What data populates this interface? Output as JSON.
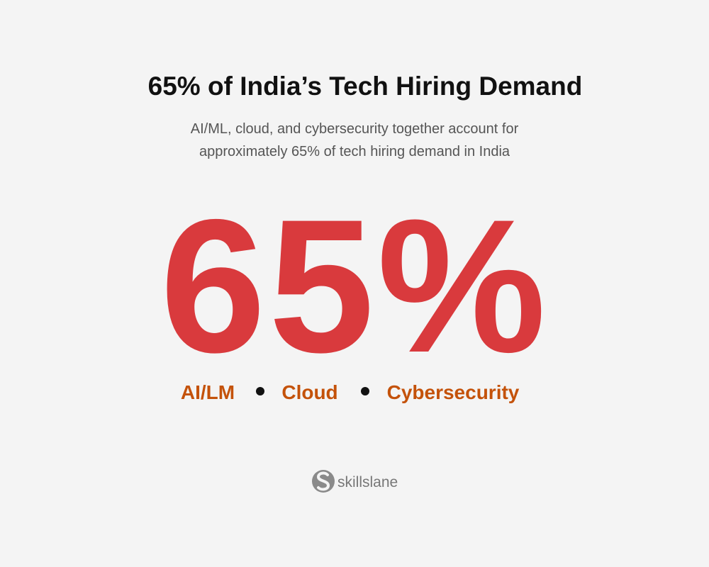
{
  "header": {
    "title": "65% of India’s Tech Hiring Demand",
    "subtitle_lines": [
      "AI/ML, cloud, and cybersecurity together account for",
      "approximately 65% of tech hiring demand in India"
    ]
  },
  "stat": {
    "value": "65%",
    "items": [
      "AI/LM",
      "Cloud",
      "Cybersecurity"
    ]
  },
  "footer": {
    "brand": "skillslane"
  }
}
